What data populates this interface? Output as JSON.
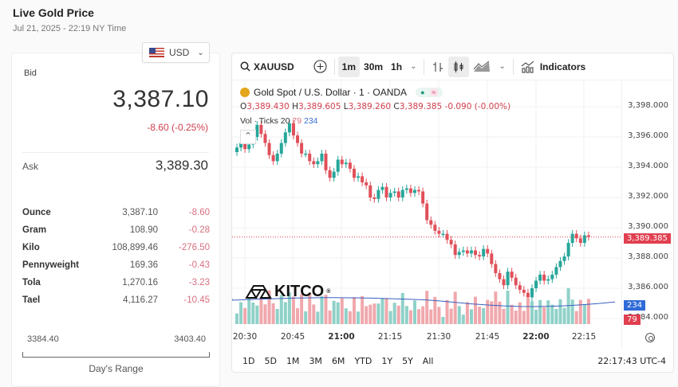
{
  "header": {
    "title": "Live Gold Price",
    "timestamp": "Jul 21, 2025 - 22:19 NY Time"
  },
  "currency": {
    "selected": "USD",
    "icon": "us-flag-icon"
  },
  "quote": {
    "bid_label": "Bid",
    "bid": "3,387.10",
    "change": "-8.60 (-0.25%)",
    "ask_label": "Ask",
    "ask": "3,389.30"
  },
  "units": [
    {
      "name": "Ounce",
      "price": "3,387.10",
      "change": "-8.60"
    },
    {
      "name": "Gram",
      "price": "108.90",
      "change": "-0.28"
    },
    {
      "name": "Kilo",
      "price": "108,899.46",
      "change": "-276.50"
    },
    {
      "name": "Pennyweight",
      "price": "169.36",
      "change": "-0.43"
    },
    {
      "name": "Tola",
      "price": "1,270.16",
      "change": "-3.23"
    },
    {
      "name": "Tael",
      "price": "4,116.27",
      "change": "-10.45"
    }
  ],
  "day_range": {
    "low": "3384.40",
    "high": "3403.40",
    "label": "Day's Range"
  },
  "chart": {
    "toolbar": {
      "symbol": "XAUUSD",
      "intervals": [
        "1m",
        "30m",
        "1h"
      ],
      "active_interval": "1m",
      "indicators_label": "Indicators"
    },
    "legend": {
      "title": "Gold Spot / U.S. Dollar · 1 · OANDA",
      "o_label": "O",
      "o": "3,389.430",
      "h_label": "H",
      "h": "3,389.605",
      "l_label": "L",
      "l": "3,389.260",
      "c_label": "C",
      "c": "3,389.385",
      "change": "-0.090 (-0.00%)",
      "vol_label": "Vol · Ticks",
      "vol_a": "20",
      "vol_b": "79",
      "vol_c": "234"
    },
    "y_ticks": [
      "3,398.000",
      "3,396.000",
      "3,394.000",
      "3,392.000",
      "3,390.000",
      "3,388.000",
      "3,386.000",
      "3,384.000"
    ],
    "x_ticks": [
      {
        "label": "20:30",
        "bold": false
      },
      {
        "label": "20:45",
        "bold": false
      },
      {
        "label": "21:00",
        "bold": true
      },
      {
        "label": "21:15",
        "bold": false
      },
      {
        "label": "21:30",
        "bold": false
      },
      {
        "label": "21:45",
        "bold": false
      },
      {
        "label": "22:00",
        "bold": true
      },
      {
        "label": "22:15",
        "bold": false
      }
    ],
    "last_price_tag": "3,389.385",
    "vol_tag_blue": "234",
    "vol_tag_red": "79",
    "watermark": "KITCO",
    "up_color": "#26a69a",
    "down_color": "#e0505a",
    "ranges": [
      "1D",
      "5D",
      "1M",
      "3M",
      "6M",
      "YTD",
      "1Y",
      "5Y",
      "All"
    ],
    "clock": "22:17:43 UTC-4"
  }
}
